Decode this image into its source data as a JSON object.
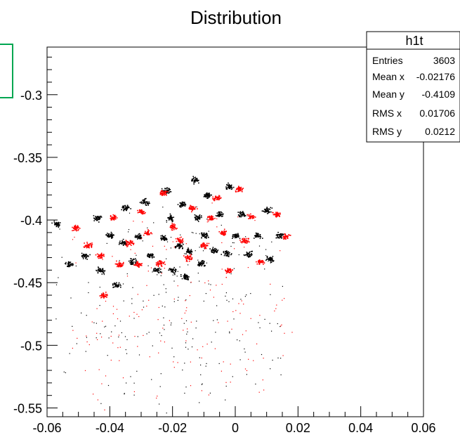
{
  "chart_data": {
    "type": "scatter",
    "title": "Distribution",
    "xlabel": "",
    "ylabel": "",
    "xlim": [
      -0.06,
      0.06
    ],
    "ylim": [
      -0.557,
      -0.262
    ],
    "x_ticks": [
      -0.06,
      -0.04,
      -0.02,
      0,
      0.02,
      0.04,
      0.06
    ],
    "x_tick_labels": [
      "-0.06",
      "-0.04",
      "-0.02",
      "0",
      "0.02",
      "0.04",
      "0.06"
    ],
    "y_ticks": [
      -0.3,
      -0.35,
      -0.4,
      -0.45,
      -0.5,
      -0.55
    ],
    "y_tick_labels": [
      "-0.3",
      "-0.35",
      "-0.4",
      "-0.45",
      "-0.5",
      "-0.55"
    ],
    "grid": false,
    "colors": {
      "series_a": "#000000",
      "series_b": "#ff0000",
      "box": "#00a651"
    },
    "series_clusters": [
      {
        "color": "black",
        "clusters": [
          [
            -0.057,
            -0.403
          ],
          [
            -0.053,
            -0.435
          ],
          [
            -0.048,
            -0.428
          ],
          [
            -0.044,
            -0.398
          ],
          [
            -0.043,
            -0.44
          ],
          [
            -0.04,
            -0.412
          ],
          [
            -0.038,
            -0.452
          ],
          [
            -0.036,
            -0.418
          ],
          [
            -0.035,
            -0.39
          ],
          [
            -0.033,
            -0.433
          ],
          [
            -0.031,
            -0.413
          ],
          [
            -0.029,
            -0.385
          ],
          [
            -0.027,
            -0.428
          ],
          [
            -0.025,
            -0.44
          ],
          [
            -0.023,
            -0.414
          ],
          [
            -0.022,
            -0.376
          ],
          [
            -0.021,
            -0.398
          ],
          [
            -0.02,
            -0.44
          ],
          [
            -0.018,
            -0.42
          ],
          [
            -0.017,
            -0.387
          ],
          [
            -0.016,
            -0.445
          ],
          [
            -0.015,
            -0.425
          ],
          [
            -0.013,
            -0.368
          ],
          [
            -0.012,
            -0.398
          ],
          [
            -0.011,
            -0.434
          ],
          [
            -0.01,
            -0.412
          ],
          [
            -0.009,
            -0.38
          ],
          [
            -0.007,
            -0.424
          ],
          [
            -0.005,
            -0.395
          ],
          [
            -0.003,
            -0.426
          ],
          [
            -0.002,
            -0.373
          ],
          [
            0.0,
            -0.412
          ],
          [
            0.002,
            -0.395
          ],
          [
            0.004,
            -0.427
          ],
          [
            0.007,
            -0.412
          ],
          [
            0.01,
            -0.392
          ],
          [
            0.011,
            -0.431
          ],
          [
            0.014,
            -0.412
          ]
        ]
      },
      {
        "color": "red",
        "clusters": [
          [
            -0.051,
            -0.406
          ],
          [
            -0.047,
            -0.42
          ],
          [
            -0.043,
            -0.428
          ],
          [
            -0.042,
            -0.46
          ],
          [
            -0.039,
            -0.398
          ],
          [
            -0.037,
            -0.435
          ],
          [
            -0.034,
            -0.418
          ],
          [
            -0.031,
            -0.435
          ],
          [
            -0.03,
            -0.393
          ],
          [
            -0.028,
            -0.41
          ],
          [
            -0.024,
            -0.434
          ],
          [
            -0.023,
            -0.378
          ],
          [
            -0.02,
            -0.405
          ],
          [
            -0.018,
            -0.416
          ],
          [
            -0.015,
            -0.43
          ],
          [
            -0.014,
            -0.39
          ],
          [
            -0.01,
            -0.42
          ],
          [
            -0.008,
            -0.398
          ],
          [
            -0.006,
            -0.382
          ],
          [
            -0.004,
            -0.41
          ],
          [
            -0.002,
            -0.44
          ],
          [
            0.001,
            -0.375
          ],
          [
            0.003,
            -0.416
          ],
          [
            0.005,
            -0.397
          ],
          [
            0.008,
            -0.433
          ],
          [
            0.013,
            -0.395
          ],
          [
            0.016,
            -0.413
          ]
        ]
      }
    ],
    "stats_box": {
      "name": "h1t",
      "rows": [
        {
          "label": "Entries",
          "value": "3603"
        },
        {
          "label": "Mean x",
          "value": "-0.02176"
        },
        {
          "label": "Mean y",
          "value": "-0.4109"
        },
        {
          "label": "RMS x",
          "value": "0.01706"
        },
        {
          "label": "RMS y",
          "value": "0.0212"
        }
      ]
    }
  }
}
